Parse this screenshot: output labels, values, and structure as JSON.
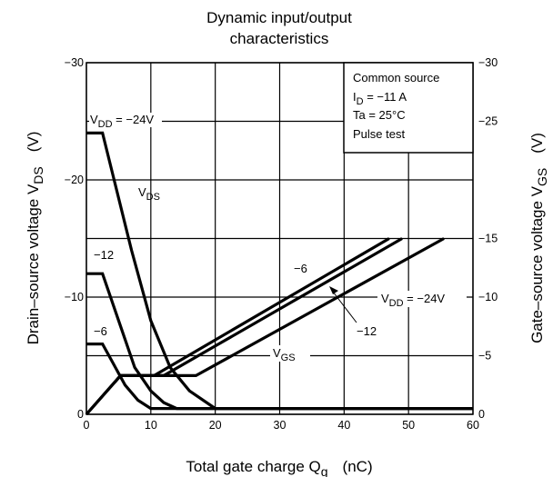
{
  "chart_data": {
    "type": "line",
    "title": "Dynamic input/output\ncharacteristics",
    "xlabel": "Total gate charge   Q",
    "xlabel_sub": "g",
    "xlabel_unit": "(nC)",
    "ylabel_left": {
      "main": "Drain–source voltage   V",
      "sub": "DS",
      "unit": "(V)"
    },
    "ylabel_right": {
      "main": "Gate–source voltage   V",
      "sub": "GS",
      "unit": "(V)"
    },
    "xlim": [
      0,
      60
    ],
    "ylim_left": [
      0,
      -30
    ],
    "ylim_right": [
      0,
      -30
    ],
    "x_ticks": [
      "0",
      "10",
      "20",
      "30",
      "40",
      "50",
      "60"
    ],
    "y_ticks_left": [
      "0",
      "−10",
      "−20",
      "−30"
    ],
    "y_ticks_right": [
      "0",
      "−5",
      "−10",
      "−15",
      "−25",
      "−30"
    ],
    "grid": true,
    "conditions_box": {
      "line1": "Common source",
      "line2_main": "I",
      "line2_sub": "D",
      "line2_rest": " = −11 A",
      "line3": "Ta = 25°C",
      "line4": "Pulse test"
    },
    "series": [
      {
        "name": "V_DS, V_DD = −24V",
        "axis": "left",
        "x": [
          0,
          2.5,
          7,
          10,
          13,
          16,
          20,
          60
        ],
        "y": [
          -24,
          -24,
          -14,
          -8,
          -4,
          -2,
          -0.5,
          -0.5
        ]
      },
      {
        "name": "V_DS, V_DD = −12V",
        "axis": "left",
        "x": [
          0,
          2.5,
          5,
          7.5,
          10,
          12,
          14,
          60
        ],
        "y": [
          -12,
          -12,
          -8,
          -4,
          -2,
          -1,
          -0.5,
          -0.5
        ]
      },
      {
        "name": "V_DS, V_DD = −6V",
        "axis": "left",
        "x": [
          0,
          2.5,
          4,
          6,
          8,
          10,
          60
        ],
        "y": [
          -6,
          -6,
          -4.5,
          -2.5,
          -1.2,
          -0.5,
          -0.5
        ]
      },
      {
        "name": "V_GS, V_DD = −6V",
        "axis": "right",
        "x": [
          0,
          5.3,
          10.5,
          47
        ],
        "y": [
          0,
          -3.3,
          -3.3,
          -15
        ]
      },
      {
        "name": "V_GS, V_DD = −12V",
        "axis": "right",
        "x": [
          0,
          5.3,
          12,
          49
        ],
        "y": [
          0,
          -3.3,
          -3.3,
          -15
        ]
      },
      {
        "name": "V_GS, V_DD = −24V",
        "axis": "right",
        "x": [
          0,
          5.3,
          17,
          55.5
        ],
        "y": [
          0,
          -3.3,
          -3.3,
          -15
        ]
      }
    ],
    "annotations": {
      "vdd_top": "V",
      "vdd_top_sub": "DD",
      "vdd_top_rest": " = −24V",
      "vds_label": "V",
      "vds_label_sub": "DS",
      "label_m12_left": "−12",
      "label_m6_left": "−6",
      "label_m6_mid": "−6",
      "vgs_label": "V",
      "vgs_label_sub": "GS",
      "vdd_right": "V",
      "vdd_right_sub": "DD",
      "vdd_right_rest": " = −24V",
      "label_m12_right": "−12"
    }
  }
}
